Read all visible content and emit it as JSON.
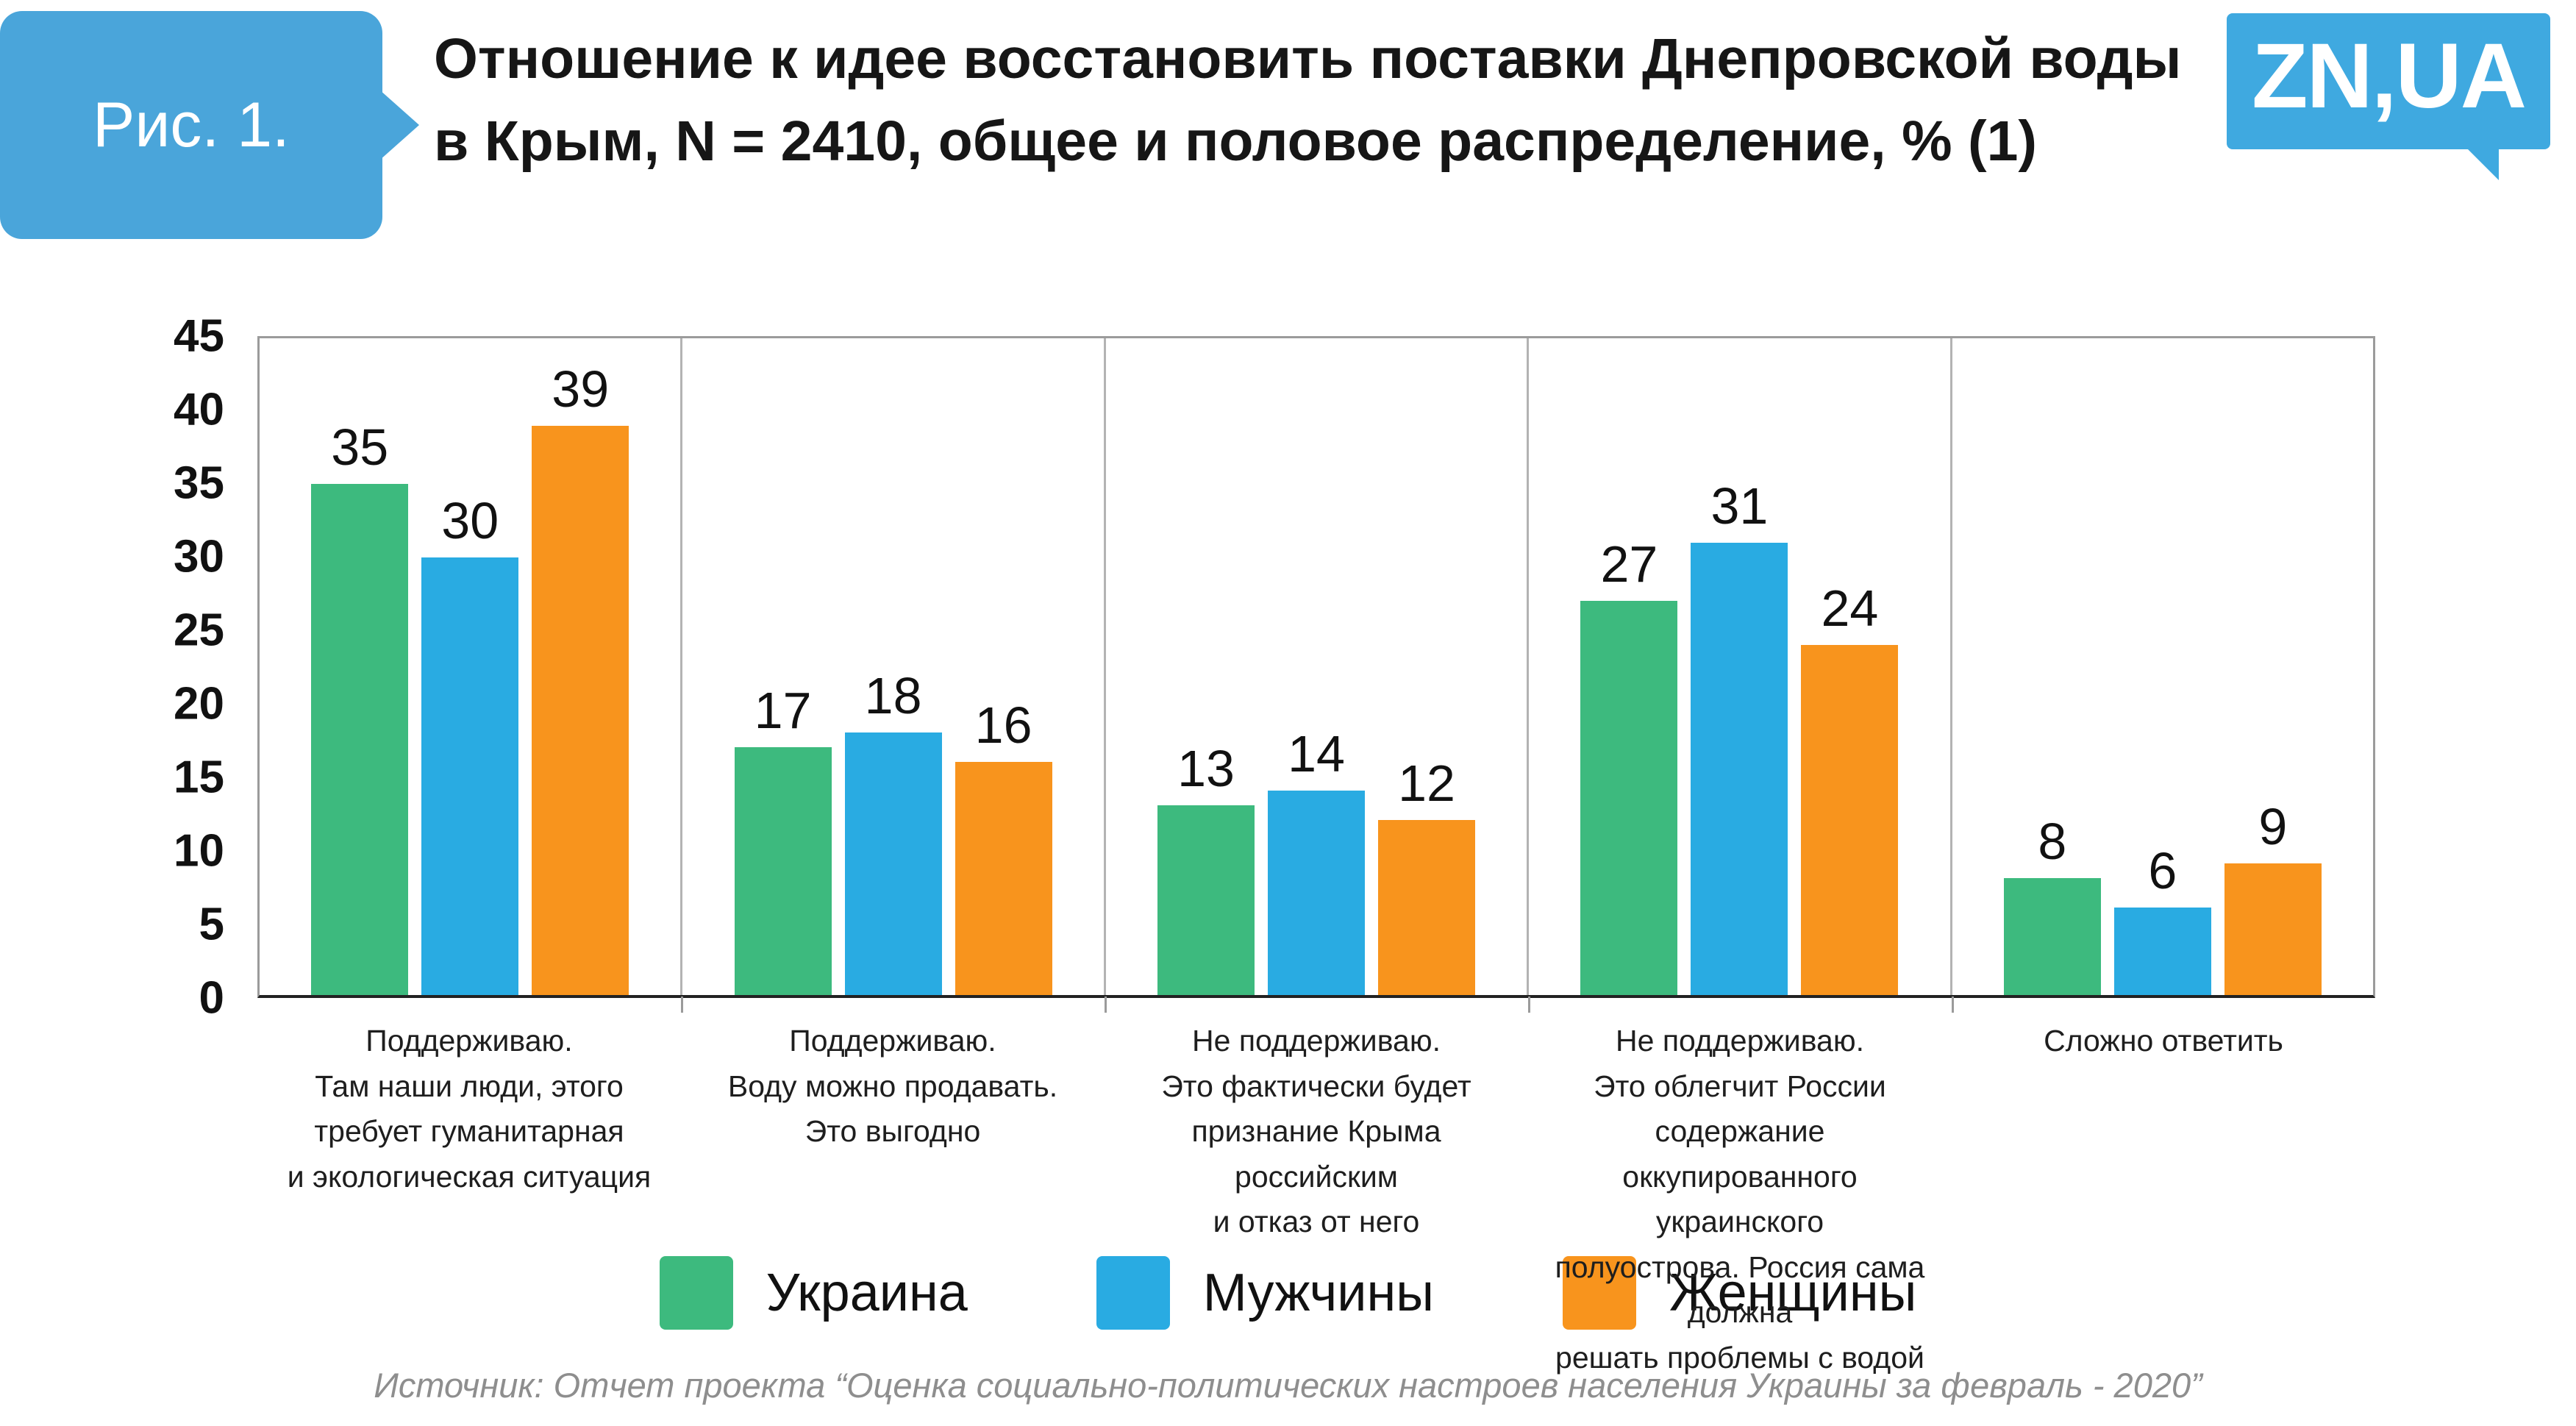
{
  "header": {
    "figure_label": "Рис. 1.",
    "title_line1": "Отношение к идее восстановить поставки Днепровской воды",
    "title_line2": "в Крым, N = 2410, общее и половое распределение, % (1)",
    "logo_text": "ZN,UA"
  },
  "source": "Источник: Отчет проекта “Оценка социально-политических настроев населения Украины за февраль - 2020”",
  "colors": {
    "badge_blue": "#4aa5da",
    "logo_blue": "#3fa9e0",
    "green": "#3dba7e",
    "blue": "#29abe2",
    "orange": "#f8941d"
  },
  "chart_data": {
    "type": "bar",
    "title": "Отношение к идее восстановить поставки Днепровской воды в Крым, N = 2410, общее и половое распределение, % (1)",
    "xlabel": "",
    "ylabel": "",
    "ylim": [
      0,
      45
    ],
    "yticks": [
      0,
      5,
      10,
      15,
      20,
      25,
      30,
      35,
      40,
      45
    ],
    "grid": "vertical separators between category groups",
    "legend_position": "bottom",
    "categories": [
      [
        "Поддерживаю.",
        "Там наши люди, этого",
        "требует гуманитарная",
        "и экологическая ситуация"
      ],
      [
        "Поддерживаю.",
        "Воду можно продавать.",
        "Это выгодно"
      ],
      [
        "Не поддерживаю.",
        "Это фактически будет",
        "признание Крыма",
        "российским",
        "и отказ от него"
      ],
      [
        "Не поддерживаю.",
        "Это облегчит России содержание",
        "оккупированного украинского",
        "полуострова. Россия сама должна",
        "решать проблемы с водой"
      ],
      [
        "Сложно ответить"
      ]
    ],
    "series": [
      {
        "name": "Украина",
        "color": "#3dba7e",
        "values": [
          35,
          17,
          13,
          27,
          8
        ]
      },
      {
        "name": "Мужчины",
        "color": "#29abe2",
        "values": [
          30,
          18,
          14,
          31,
          6
        ]
      },
      {
        "name": "Женщины",
        "color": "#f8941d",
        "values": [
          39,
          16,
          12,
          24,
          9
        ]
      }
    ]
  }
}
